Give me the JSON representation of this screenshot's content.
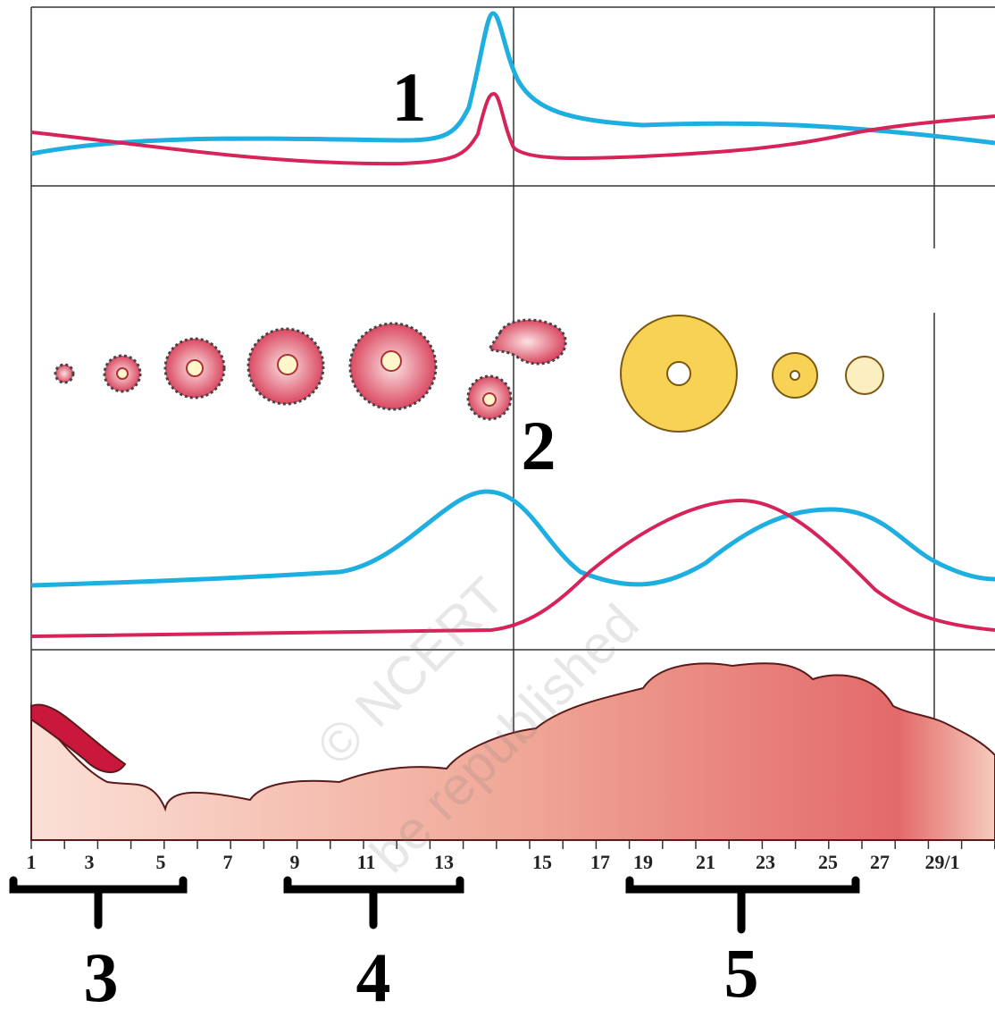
{
  "markers": [
    "1",
    "2",
    "3",
    "4",
    "5"
  ],
  "days": [
    "1",
    "3",
    "5",
    "7",
    "9",
    "11",
    "13",
    "15",
    "17",
    "19",
    "21",
    "23",
    "25",
    "27",
    "29/1"
  ],
  "watermark": [
    "© NCERT",
    "be republished"
  ]
}
